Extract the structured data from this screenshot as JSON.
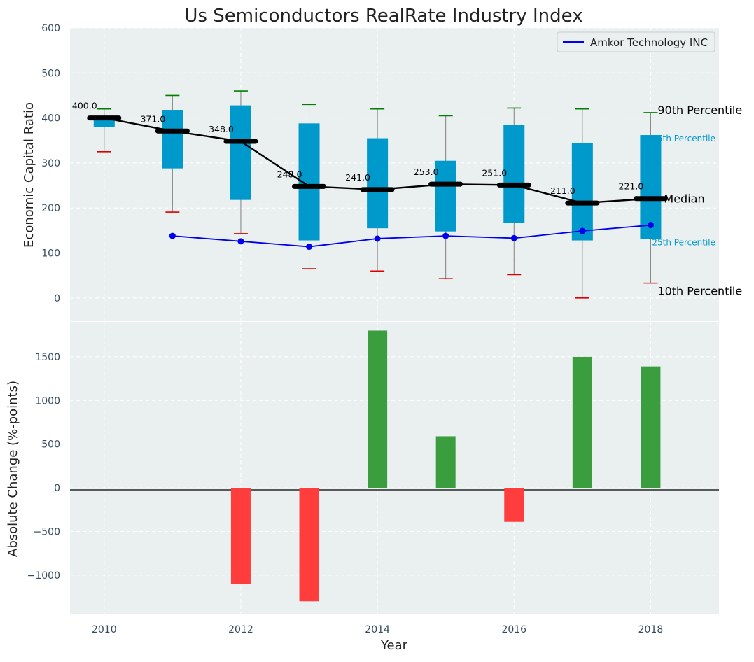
{
  "chart_data": {
    "type": "boxplot-with-bar",
    "title": "Us Semiconductors RealRate Industry Index",
    "xlabel": "Year",
    "x_ticks": [
      "2010",
      "2012",
      "2014",
      "2016",
      "2018"
    ],
    "xlim": [
      2009.5,
      2019
    ],
    "top_panel": {
      "ylabel": "Economic Capital Ratio",
      "ylim": [
        -50,
        600
      ],
      "y_ticks": [
        "0",
        "100",
        "200",
        "300",
        "400",
        "500",
        "600"
      ],
      "years": [
        2010,
        2011,
        2012,
        2013,
        2014,
        2015,
        2016,
        2017,
        2018
      ],
      "p90": [
        420,
        450,
        460,
        430,
        420,
        405,
        422,
        420,
        412
      ],
      "p75": [
        400,
        418,
        428,
        388,
        355,
        305,
        385,
        345,
        362
      ],
      "median": [
        400,
        371,
        348,
        248,
        241,
        253,
        251,
        211,
        221
      ],
      "median_labels": [
        "400.0",
        "371.0",
        "348.0",
        "248.0",
        "241.0",
        "253.0",
        "251.0",
        "211.0",
        "221.0"
      ],
      "p25": [
        380,
        288,
        218,
        128,
        155,
        148,
        167,
        128,
        131
      ],
      "p10": [
        325,
        191,
        143,
        65,
        60,
        43,
        52,
        0,
        33
      ],
      "company": {
        "name": "Amkor Technology INC",
        "years": [
          2011,
          2012,
          2013,
          2014,
          2015,
          2016,
          2017,
          2018
        ],
        "values": [
          138,
          126,
          114,
          132,
          138,
          133,
          149,
          162
        ]
      },
      "annotations": {
        "p90": "90th Percentile",
        "p75": "75th Percentile",
        "median": "Median",
        "p25": "25th Percentile",
        "p10": "10th Percentile"
      }
    },
    "bottom_panel": {
      "ylabel": "Absolute Change (%-points)",
      "ylim": [
        -1450,
        1900
      ],
      "y_ticks": [
        "−1000",
        "−500",
        "0",
        "500",
        "1000",
        "1500"
      ],
      "years": [
        2012,
        2013,
        2014,
        2015,
        2016,
        2017,
        2018
      ],
      "values": [
        -1100,
        -1300,
        1800,
        590,
        -390,
        1500,
        1390
      ]
    },
    "colors": {
      "box": "#0099cc",
      "median_line": "#000000",
      "company_line": "#0000ee",
      "whisker": "#808080",
      "p90_cap": "#008000",
      "p10_cap": "#dd0000",
      "bar_positive": "#3a9d3e",
      "bar_negative": "#ff3d3d",
      "panel_bg": "#eaeff0",
      "text": "#34495e"
    }
  }
}
